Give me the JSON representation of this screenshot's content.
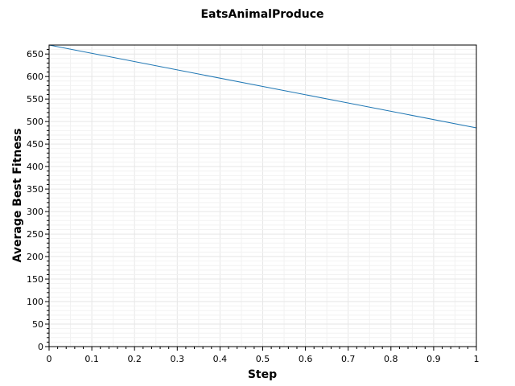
{
  "chart_data": {
    "type": "line",
    "title": "EatsAnimalProduce",
    "xlabel": "Step",
    "ylabel": "Average Best Fitness",
    "xlim": [
      0,
      1
    ],
    "ylim": [
      0,
      670
    ],
    "xticks": [
      "0",
      "0.1",
      "0.2",
      "0.3",
      "0.4",
      "0.5",
      "0.6",
      "0.7",
      "0.8",
      "0.9",
      "1"
    ],
    "yticks": [
      "0",
      "50",
      "100",
      "150",
      "200",
      "250",
      "300",
      "350",
      "400",
      "450",
      "500",
      "550",
      "600",
      "650"
    ],
    "grid": true,
    "legend": "none",
    "series": [
      {
        "color": "#1f77b4",
        "x": [
          0,
          1
        ],
        "y": [
          670,
          486
        ]
      }
    ]
  }
}
